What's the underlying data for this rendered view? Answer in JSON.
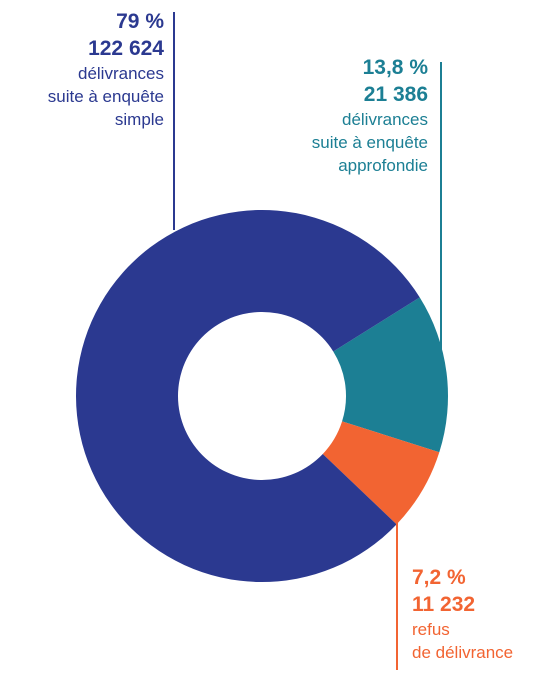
{
  "chart_data": {
    "type": "donut",
    "title": "",
    "slices": [
      {
        "percent": "79 %",
        "value_label": "122 624",
        "value": 122624,
        "share": 0.79,
        "desc": [
          "délivrances",
          "suite à enquête",
          "simple"
        ],
        "color": "#2B3990"
      },
      {
        "percent": "13,8 %",
        "value_label": "21 386",
        "value": 21386,
        "share": 0.138,
        "desc": [
          "délivrances",
          "suite à enquête",
          "approfondie"
        ],
        "color": "#1C7F94"
      },
      {
        "percent": "7,2 %",
        "value_label": "11 232",
        "value": 11232,
        "share": 0.072,
        "desc": [
          "refus",
          "de délivrance"
        ],
        "color": "#F26432"
      }
    ]
  }
}
